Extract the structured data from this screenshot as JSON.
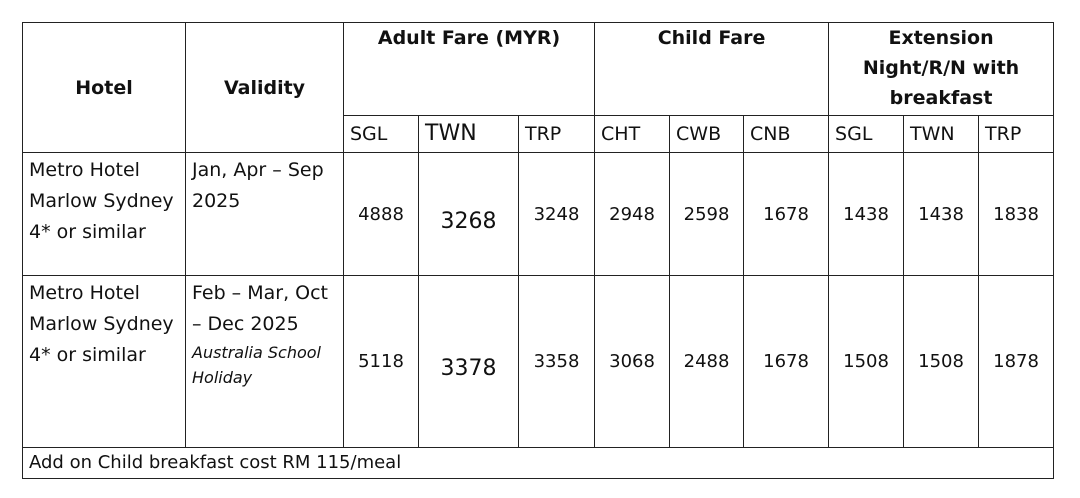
{
  "header": {
    "hotel": "Hotel",
    "validity": "Validity",
    "groups": [
      "Adult Fare (MYR)",
      "Child Fare",
      "Extension Night/R/N with breakfast"
    ],
    "subheaders": [
      "SGL",
      "TWN",
      "TRP",
      "CHT",
      "CWB",
      "CNB",
      "SGL",
      "TWN",
      "TRP"
    ]
  },
  "rows": [
    {
      "hotel": "Metro Hotel Marlow Sydney 4* or similar",
      "validity": "Jan, Apr – Sep 2025",
      "fares": [
        4888,
        3268,
        3248,
        2948,
        2598,
        1678,
        1438,
        1438,
        1838
      ]
    },
    {
      "hotel": "Metro Hotel Marlow Sydney 4* or similar",
      "validity": "Feb – Mar, Oct – Dec 2025",
      "note": "Australia School Holiday",
      "fares": [
        5118,
        3378,
        3358,
        3068,
        2488,
        1678,
        1508,
        1508,
        1878
      ]
    }
  ],
  "footer": "Add on Child breakfast cost RM 115/meal"
}
